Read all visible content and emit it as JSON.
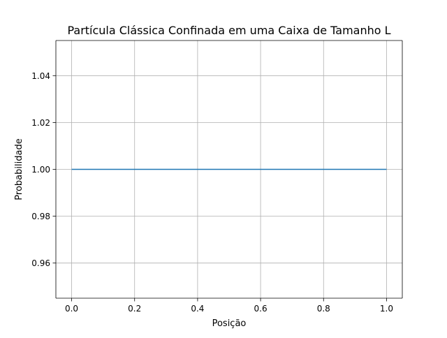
{
  "chart_data": {
    "type": "line",
    "title": "Partícula Clássica Confinada em uma Caixa de Tamanho L",
    "xlabel": "Posição",
    "ylabel": "Probabilidade",
    "xlim": [
      -0.05,
      1.05
    ],
    "ylim": [
      0.945,
      1.055
    ],
    "xticks": [
      0.0,
      0.2,
      0.4,
      0.6,
      0.8,
      1.0
    ],
    "xtick_labels": [
      "0.0",
      "0.2",
      "0.4",
      "0.6",
      "0.8",
      "1.0"
    ],
    "yticks": [
      0.96,
      0.98,
      1.0,
      1.02,
      1.04
    ],
    "ytick_labels": [
      "0.96",
      "0.98",
      "1.00",
      "1.02",
      "1.04"
    ],
    "grid": true,
    "series": [
      {
        "x": [
          0.0,
          1.0
        ],
        "y": [
          1.0,
          1.0
        ],
        "color": "#1f77b4"
      }
    ]
  }
}
